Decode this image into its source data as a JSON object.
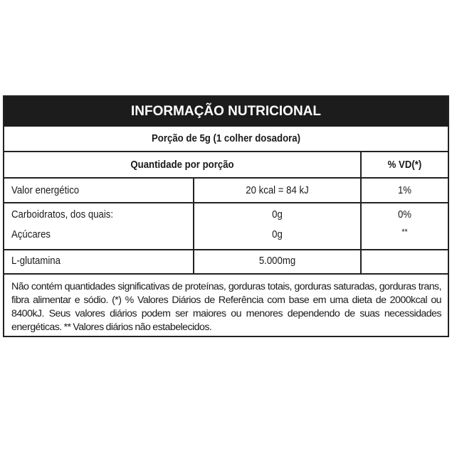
{
  "title": "INFORMAÇÃO NUTRICIONAL",
  "serving": "Porção de 5g (1 colher dosadora)",
  "headers": {
    "quantity": "Quantidade por porção",
    "dv": "% VD(*)"
  },
  "rows": [
    {
      "name": "Valor energético",
      "amount": "20 kcal = 84 kJ",
      "dv": "1%"
    },
    {
      "name": "Carboidratos, dos quais:",
      "amount": "0g",
      "dv": "0%"
    },
    {
      "name": "Açúcares",
      "amount": "0g",
      "dv": "**"
    },
    {
      "name": "L-glutamina",
      "amount": "5.000mg",
      "dv": ""
    }
  ],
  "footnote": "Não contém quantidades significativas de proteínas, gorduras totais, gorduras saturadas, gorduras trans, fibra alimentar e sódio. (*) % Valores Diários de Referência com base em uma dieta de 2000kcal ou 8400kJ. Seus valores diários podem ser maiores ou menores dependendo de suas necessidades energéticas. ** Valores diários não estabelecidos."
}
